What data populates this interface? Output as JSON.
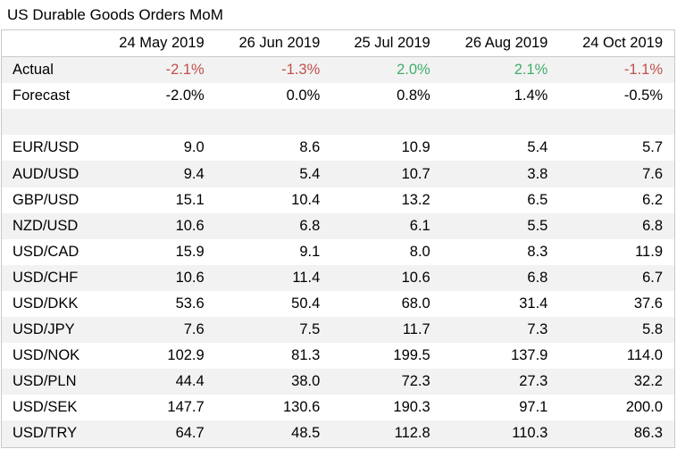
{
  "title": "US Durable Goods Orders MoM",
  "columns": [
    "24 May 2019",
    "26 Jun 2019",
    "25 Jul 2019",
    "26 Aug 2019",
    "24 Oct 2019"
  ],
  "actual": {
    "label": "Actual",
    "values": [
      "-2.1%",
      "-1.3%",
      "2.0%",
      "2.1%",
      "-1.1%"
    ],
    "colors": [
      "neg",
      "neg",
      "pos",
      "pos",
      "neg"
    ]
  },
  "forecast": {
    "label": "Forecast",
    "values": [
      "-2.0%",
      "0.0%",
      "0.8%",
      "1.4%",
      "-0.5%"
    ]
  },
  "pairs": [
    {
      "label": "EUR/USD",
      "values": [
        "9.0",
        "8.6",
        "10.9",
        "5.4",
        "5.7"
      ]
    },
    {
      "label": "AUD/USD",
      "values": [
        "9.4",
        "5.4",
        "10.7",
        "3.8",
        "7.6"
      ]
    },
    {
      "label": "GBP/USD",
      "values": [
        "15.1",
        "10.4",
        "13.2",
        "6.5",
        "6.2"
      ]
    },
    {
      "label": "NZD/USD",
      "values": [
        "10.6",
        "6.8",
        "6.1",
        "5.5",
        "6.8"
      ]
    },
    {
      "label": "USD/CAD",
      "values": [
        "15.9",
        "9.1",
        "8.0",
        "8.3",
        "11.9"
      ]
    },
    {
      "label": "USD/CHF",
      "values": [
        "10.6",
        "11.4",
        "10.6",
        "6.8",
        "6.7"
      ]
    },
    {
      "label": "USD/DKK",
      "values": [
        "53.6",
        "50.4",
        "68.0",
        "31.4",
        "37.6"
      ]
    },
    {
      "label": "USD/JPY",
      "values": [
        "7.6",
        "7.5",
        "11.7",
        "7.3",
        "5.8"
      ]
    },
    {
      "label": "USD/NOK",
      "values": [
        "102.9",
        "81.3",
        "199.5",
        "137.9",
        "114.0"
      ]
    },
    {
      "label": "USD/PLN",
      "values": [
        "44.4",
        "38.0",
        "72.3",
        "27.3",
        "32.2"
      ]
    },
    {
      "label": "USD/SEK",
      "values": [
        "147.7",
        "130.6",
        "190.3",
        "97.1",
        "200.0"
      ]
    },
    {
      "label": "USD/TRY",
      "values": [
        "64.7",
        "48.5",
        "112.8",
        "110.3",
        "86.3"
      ]
    }
  ]
}
